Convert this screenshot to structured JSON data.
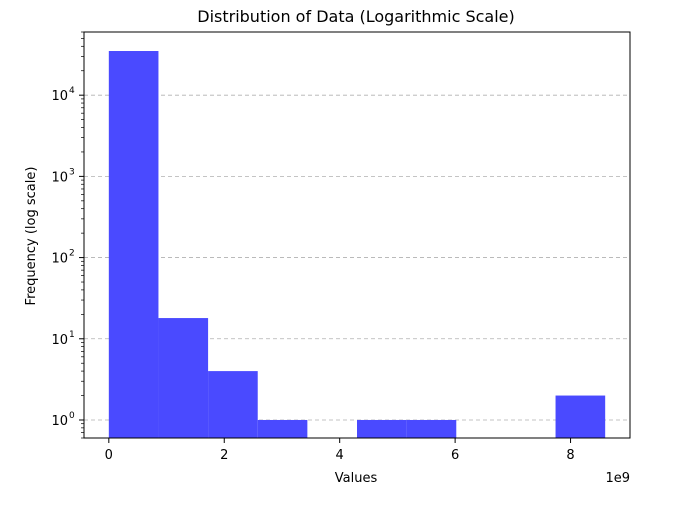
{
  "chart_data": {
    "type": "bar",
    "title": "Distribution of Data (Logarithmic Scale)",
    "xlabel": "Values",
    "ylabel": "Frequency (log scale)",
    "x_offset_label": "1e9",
    "y_scale": "log",
    "grid": "y-dashed",
    "color": "#4a4aff",
    "xlim": [
      -0.43,
      9.03
    ],
    "ylim": [
      0.6,
      60000
    ],
    "x_ticks": [
      {
        "value": 0,
        "label": "0"
      },
      {
        "value": 2,
        "label": "2"
      },
      {
        "value": 4,
        "label": "4"
      },
      {
        "value": 6,
        "label": "6"
      },
      {
        "value": 8,
        "label": "8"
      }
    ],
    "y_ticks": [
      {
        "value": 1,
        "base": "10",
        "exp": "0"
      },
      {
        "value": 10,
        "base": "10",
        "exp": "1"
      },
      {
        "value": 100,
        "base": "10",
        "exp": "2"
      },
      {
        "value": 1000,
        "base": "10",
        "exp": "3"
      },
      {
        "value": 10000,
        "base": "10",
        "exp": "4"
      }
    ],
    "bin_edges": [
      0,
      0.86,
      1.72,
      2.58,
      3.44,
      4.3,
      5.16,
      6.02,
      6.88,
      7.74,
      8.6
    ],
    "values": [
      35000,
      18,
      4,
      1,
      0,
      1,
      1,
      0,
      0,
      2
    ]
  }
}
